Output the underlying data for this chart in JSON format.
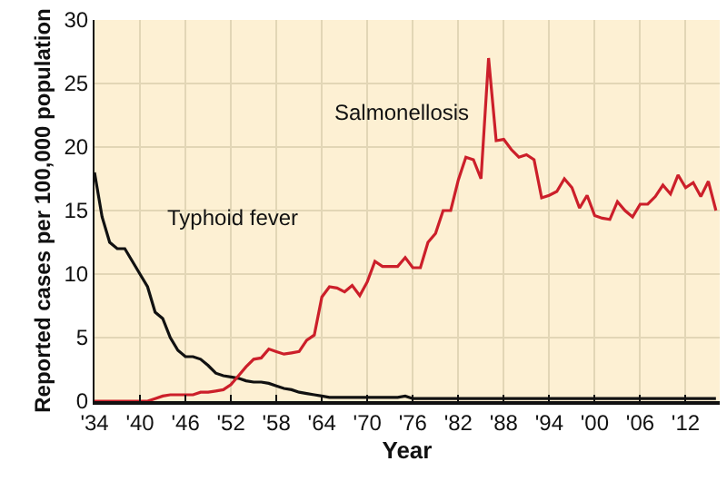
{
  "chart_data": {
    "type": "line",
    "xlabel": "Year",
    "ylabel": "Reported cases per 100,000 population",
    "xlim": [
      1934,
      2016.5
    ],
    "ylim": [
      0,
      30
    ],
    "yticks": [
      0,
      5,
      10,
      15,
      20,
      25,
      30
    ],
    "xticks": [
      {
        "value": 1934,
        "label": "'34"
      },
      {
        "value": 1940,
        "label": "'40"
      },
      {
        "value": 1946,
        "label": "'46"
      },
      {
        "value": 1952,
        "label": "'52"
      },
      {
        "value": 1958,
        "label": "'58"
      },
      {
        "value": 1964,
        "label": "'64"
      },
      {
        "value": 1970,
        "label": "'70"
      },
      {
        "value": 1976,
        "label": "'76"
      },
      {
        "value": 1982,
        "label": "'82"
      },
      {
        "value": 1988,
        "label": "'88"
      },
      {
        "value": 1994,
        "label": "'94"
      },
      {
        "value": 2000,
        "label": "'00"
      },
      {
        "value": 2006,
        "label": "'06"
      },
      {
        "value": 2012,
        "label": "'12"
      }
    ],
    "grid": true,
    "legend": false,
    "marker": "none",
    "line_style": "solid",
    "series": [
      {
        "name": "Typhoid fever",
        "color": "#111111",
        "x": [
          1934,
          1935,
          1936,
          1937,
          1938,
          1939,
          1940,
          1941,
          1942,
          1943,
          1944,
          1945,
          1946,
          1947,
          1948,
          1949,
          1950,
          1951,
          1952,
          1953,
          1954,
          1955,
          1956,
          1957,
          1958,
          1959,
          1960,
          1961,
          1962,
          1963,
          1964,
          1965,
          1970,
          1974,
          1975,
          1976,
          1980,
          1985,
          1990,
          2000,
          2010,
          2016
        ],
        "values": [
          18,
          14.5,
          12.5,
          12,
          12,
          11,
          10,
          9,
          7,
          6.5,
          5,
          4,
          3.5,
          3.5,
          3.3,
          2.8,
          2.2,
          2.0,
          1.9,
          1.8,
          1.6,
          1.5,
          1.5,
          1.4,
          1.2,
          1.0,
          0.9,
          0.7,
          0.6,
          0.5,
          0.4,
          0.3,
          0.3,
          0.3,
          0.4,
          0.2,
          0.2,
          0.2,
          0.2,
          0.2,
          0.2,
          0.2
        ]
      },
      {
        "name": "Salmonellosis",
        "color": "#cc1f2a",
        "x": [
          1934,
          1941,
          1942,
          1943,
          1944,
          1946,
          1947,
          1948,
          1949,
          1950,
          1951,
          1952,
          1953,
          1954,
          1955,
          1956,
          1957,
          1958,
          1959,
          1960,
          1961,
          1962,
          1963,
          1964,
          1965,
          1966,
          1967,
          1968,
          1969,
          1970,
          1971,
          1972,
          1973,
          1974,
          1975,
          1976,
          1977,
          1978,
          1979,
          1980,
          1981,
          1982,
          1983,
          1984,
          1985,
          1986,
          1987,
          1988,
          1989,
          1990,
          1991,
          1992,
          1993,
          1994,
          1995,
          1996,
          1997,
          1998,
          1999,
          2000,
          2001,
          2002,
          2003,
          2004,
          2005,
          2006,
          2007,
          2008,
          2009,
          2010,
          2011,
          2012,
          2013,
          2014,
          2015,
          2016
        ],
        "values": [
          0,
          0,
          0.2,
          0.4,
          0.5,
          0.5,
          0.5,
          0.7,
          0.7,
          0.8,
          0.9,
          1.3,
          2,
          2.7,
          3.3,
          3.4,
          4.1,
          3.9,
          3.7,
          3.8,
          3.9,
          4.8,
          5.2,
          8.2,
          9,
          8.9,
          8.6,
          9.1,
          8.3,
          9.4,
          11,
          10.6,
          10.6,
          10.6,
          11.3,
          10.5,
          10.5,
          12.5,
          13.2,
          15,
          15,
          17.4,
          19.2,
          19,
          17.5,
          27,
          20.5,
          20.6,
          19.8,
          19.2,
          19.4,
          19,
          16,
          16.2,
          16.5,
          17.5,
          16.8,
          15.2,
          16.2,
          14.6,
          14.4,
          14.3,
          15.7,
          15,
          14.5,
          15.5,
          15.5,
          16.1,
          17,
          16.3,
          17.8,
          16.8,
          17.2,
          16.1,
          17.3,
          15
        ]
      }
    ]
  }
}
